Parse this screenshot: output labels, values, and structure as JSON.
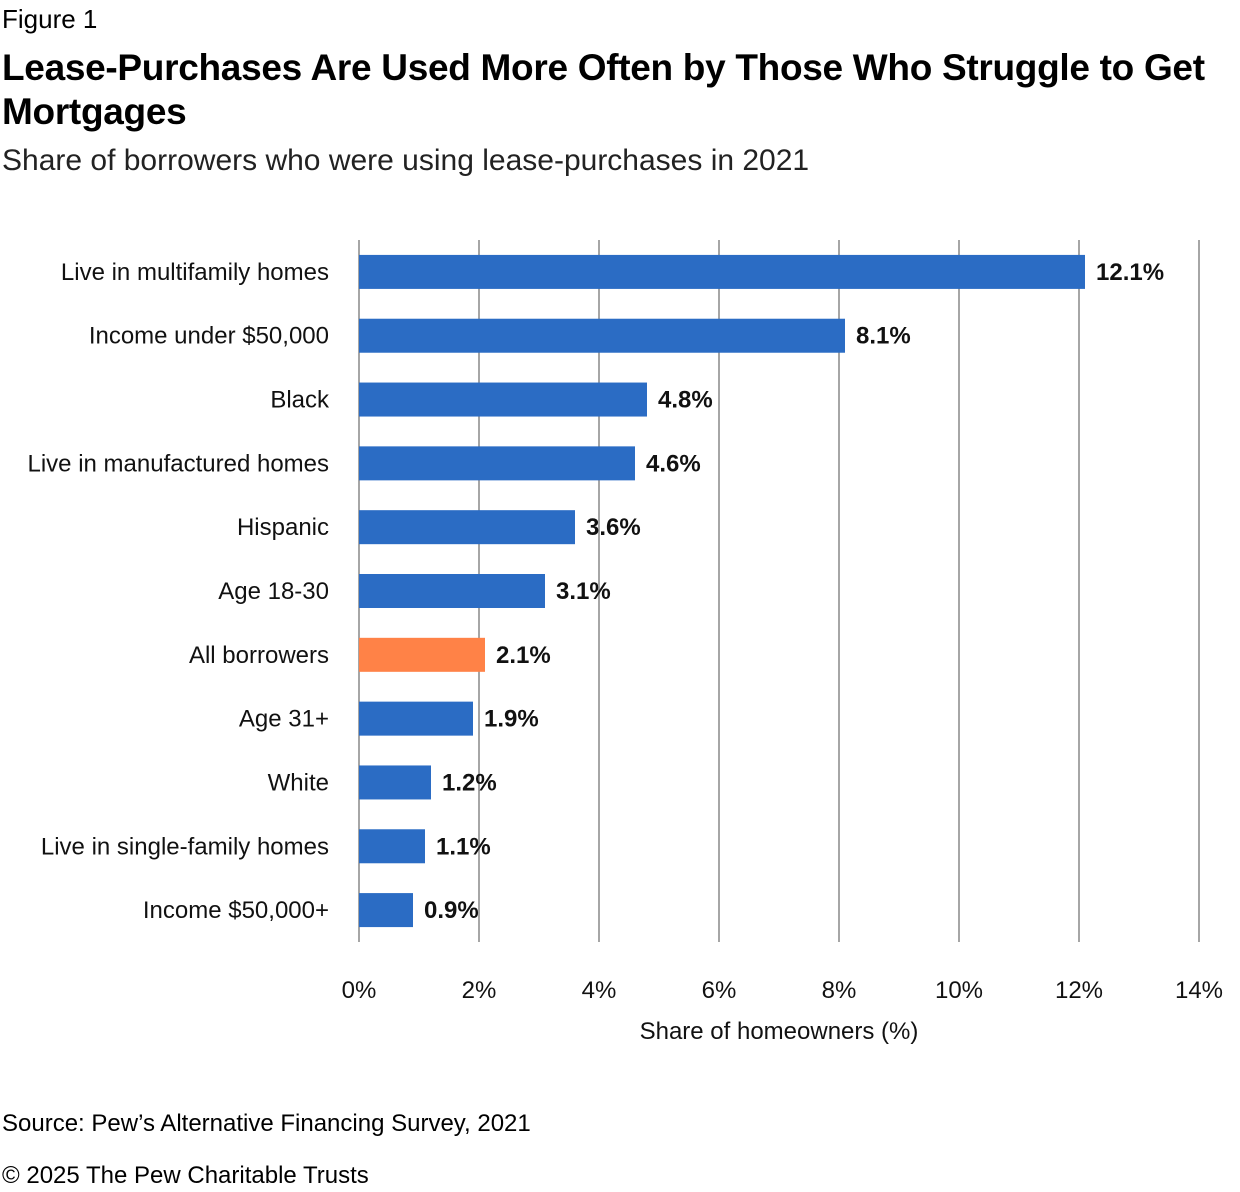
{
  "figure_label": "Figure 1",
  "title": "Lease-Purchases Are Used More Often by Those Who Struggle to Get Mortgages",
  "subtitle": "Share of borrowers who were using lease-purchases in 2021",
  "chart_data": {
    "type": "bar",
    "orientation": "horizontal",
    "categories": [
      "Live in multifamily homes",
      "Income under $50,000",
      "Black",
      "Live in manufactured homes",
      "Hispanic",
      "Age 18-30",
      "All borrowers",
      "Age 31+",
      "White",
      "Live in single-family homes",
      "Income $50,000+"
    ],
    "values": [
      12.1,
      8.1,
      4.8,
      4.6,
      3.6,
      3.1,
      2.1,
      1.9,
      1.2,
      1.1,
      0.9
    ],
    "value_labels": [
      "12.1%",
      "8.1%",
      "4.8%",
      "4.6%",
      "3.6%",
      "3.1%",
      "2.1%",
      "1.9%",
      "1.2%",
      "1.1%",
      "0.9%"
    ],
    "highlight_category": "All borrowers",
    "xlabel": "Share of homeowners (%)",
    "ylabel": "",
    "xlim": [
      0,
      14
    ],
    "xticks": [
      0,
      2,
      4,
      6,
      8,
      10,
      12,
      14
    ],
    "xtick_labels": [
      "0%",
      "2%",
      "4%",
      "6%",
      "8%",
      "10%",
      "12%",
      "14%"
    ],
    "grid": "vertical",
    "legend": "none",
    "colors": {
      "bar": "#2b6cc4",
      "highlight": "#ff8247",
      "grid": "#a6a6a6"
    }
  },
  "source": "Source: Pew’s Alternative Financing Survey, 2021",
  "copyright": "© 2025 The Pew Charitable Trusts"
}
